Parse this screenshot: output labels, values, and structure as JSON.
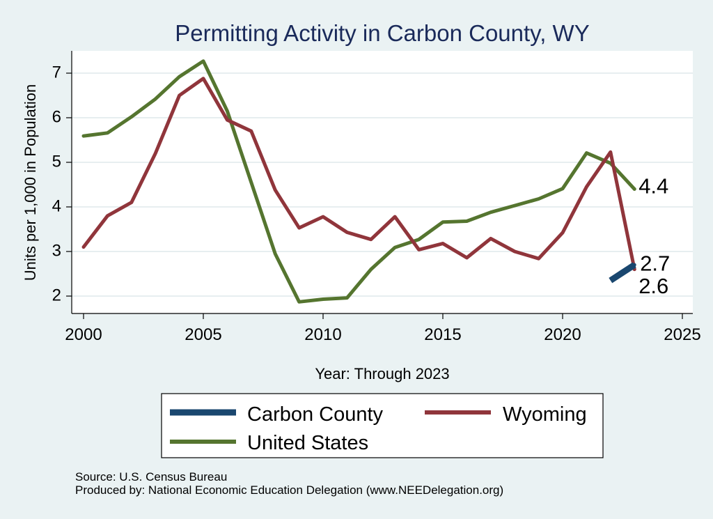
{
  "chart_data": {
    "type": "line",
    "title": "Permitting Activity in Carbon County, WY",
    "xlabel": "Year: Through 2023",
    "ylabel": "Units per 1,000 in Population",
    "xlim": [
      2000,
      2025
    ],
    "ylim": [
      1.75,
      7.35
    ],
    "xticks": [
      2000,
      2005,
      2010,
      2015,
      2020,
      2025
    ],
    "yticks": [
      2,
      3,
      4,
      5,
      6,
      7
    ],
    "grid": true,
    "legend_position": "bottom",
    "series": [
      {
        "name": "Carbon County",
        "color": "#1a476f",
        "x": [
          2022,
          2023
        ],
        "y": [
          2.35,
          2.7
        ],
        "end_label": "2.7"
      },
      {
        "name": "Wyoming",
        "color": "#90353b",
        "x": [
          2000,
          2001,
          2002,
          2003,
          2004,
          2005,
          2006,
          2007,
          2008,
          2009,
          2010,
          2011,
          2012,
          2013,
          2014,
          2015,
          2016,
          2017,
          2018,
          2019,
          2020,
          2021,
          2022,
          2023
        ],
        "y": [
          3.1,
          3.8,
          4.1,
          5.2,
          6.5,
          6.88,
          5.95,
          5.7,
          4.38,
          3.53,
          3.78,
          3.43,
          3.27,
          3.78,
          3.04,
          3.18,
          2.86,
          3.29,
          3.0,
          2.84,
          3.42,
          4.45,
          5.23,
          2.6
        ],
        "end_label": "2.6"
      },
      {
        "name": "United States",
        "color": "#55752f",
        "x": [
          2000,
          2001,
          2002,
          2003,
          2004,
          2005,
          2006,
          2007,
          2008,
          2009,
          2010,
          2011,
          2012,
          2013,
          2014,
          2015,
          2016,
          2017,
          2018,
          2019,
          2020,
          2021,
          2022,
          2023
        ],
        "y": [
          5.59,
          5.66,
          6.02,
          6.42,
          6.92,
          7.27,
          6.15,
          4.55,
          2.95,
          1.87,
          1.93,
          1.96,
          2.6,
          3.09,
          3.27,
          3.66,
          3.68,
          3.88,
          4.03,
          4.18,
          4.41,
          5.21,
          4.98,
          4.4
        ],
        "end_label": "4.4"
      }
    ],
    "footer": {
      "source": "Source: U.S. Census Bureau",
      "produced_by": "Produced by: National Economic Education Delegation (www.NEEDelegation.org)"
    }
  }
}
